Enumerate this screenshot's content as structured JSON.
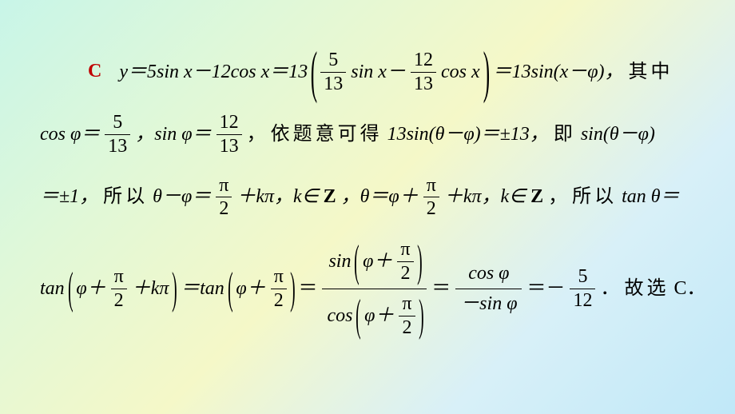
{
  "answer_color": "#c00000",
  "text_color": "#000000",
  "background_gradient": [
    "#c8f5e8",
    "#e0f8d8",
    "#f5f8c8",
    "#d8f0f8",
    "#c0e8f8"
  ],
  "fontsize_body": 24,
  "answer": {
    "letter": "C"
  },
  "frac_5_13": {
    "num": "5",
    "den": "13"
  },
  "frac_12_13": {
    "num": "12",
    "den": "13"
  },
  "frac_pi_2": {
    "num": "π",
    "den": "2"
  },
  "frac_5_12": {
    "num": "5",
    "den": "12"
  },
  "row1": {
    "a": "y＝5sin x－12cos x＝13",
    "b": "sin x－",
    "c": "cos x",
    "d": "＝13sin(x－φ)，",
    "cn1": "其中"
  },
  "row2": {
    "a": "cos φ＝",
    "b": "，sin φ＝",
    "c": "，",
    "cn1": "依题意可得",
    "d": " 13sin(θ－φ)＝±13，",
    "cn2": "即",
    "e": " sin(θ－φ)"
  },
  "row3": {
    "a": "＝±1，",
    "cn1": "所以",
    "b": " θ－φ＝",
    "c": "＋kπ，k∈",
    "z1": "Z",
    "d": "，θ＝φ＋",
    "e": "＋kπ，k∈",
    "z2": "Z",
    "f": "，",
    "cn2": "所以",
    "g": " tan θ＝"
  },
  "row4": {
    "a": "tan",
    "b": "φ＋",
    "c": "＋kπ",
    "d": "＝tan",
    "e": "φ＋",
    "f": "＝",
    "bf1_num_a": "sin",
    "bf1_num_b": "φ＋",
    "bf1_den_a": "cos",
    "bf1_den_b": "φ＋",
    "g": "＝",
    "bf2_num": "cos φ",
    "bf2_den": "－sin φ",
    "h": "＝－",
    "i": "．",
    "cn1": "故选",
    "j": " C．"
  }
}
